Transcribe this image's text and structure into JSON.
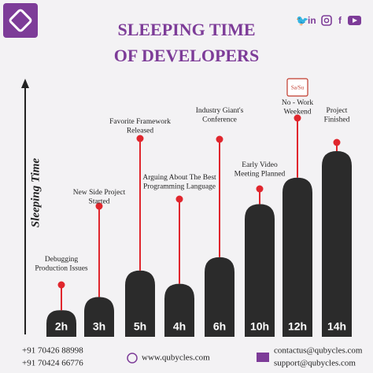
{
  "chart_data": {
    "type": "bar",
    "title": [
      "SLEEPING TIME",
      "OF DEVELOPERS"
    ],
    "y_label": "Sleeping Time",
    "categories": [
      "Debugging Production Issues",
      "New Side Project Started",
      "Favorite Framework Released",
      "Arguing About The Best Programming Language",
      "Industry Giant's Conference",
      "Early Video Meeting Planned",
      "No - Work Weekend",
      "Project Finished"
    ],
    "annotations": [
      [
        "Debugging",
        "Production Issues"
      ],
      [
        "New Side Project",
        "Started"
      ],
      [
        "Favorite Framework",
        "Released"
      ],
      [
        "Arguing About The Best",
        "Programming Language"
      ],
      [
        "Industry Giant's",
        "Conference"
      ],
      [
        "Early Video",
        "Meeting Planned"
      ],
      [
        "No - Work",
        "Weekend"
      ],
      [
        "Project",
        "Finished"
      ]
    ],
    "values": [
      2,
      3,
      5,
      4,
      6,
      10,
      12,
      14
    ],
    "value_labels": [
      "2h",
      "3h",
      "5h",
      "4h",
      "6h",
      "10h",
      "12h",
      "14h"
    ],
    "color": "#2b2b2b",
    "pin_color": "#e0262d",
    "ylim": [
      0,
      14
    ],
    "icon_label": "Sa/Su"
  },
  "footer": {
    "phones": [
      "+91 70426 88998",
      "+91 70424 66776"
    ],
    "website": "www.qubycles.com",
    "emails": [
      "contactus@qubycles.com",
      "support@qubycles.com"
    ]
  }
}
